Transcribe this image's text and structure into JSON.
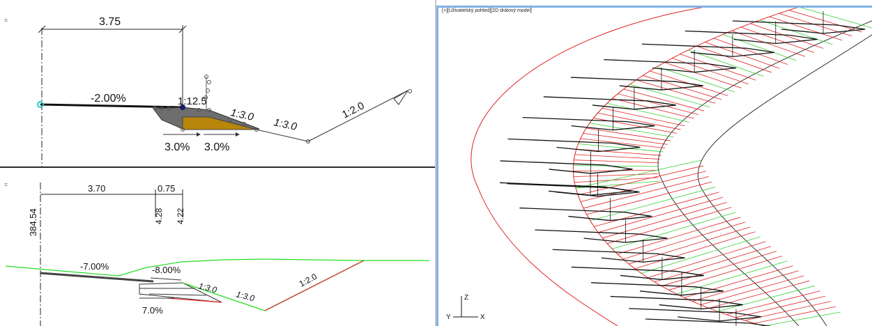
{
  "top_view": {
    "corner_icon": "viewport-icon",
    "dim_width": "3.75",
    "slope_main": "-2.00%",
    "slope_1_12": "1:12.5",
    "slope_1_3a": "1:3.0",
    "slope_1_3b": "1:3.0",
    "slope_1_2": "1:2.0",
    "pct_left": "3.0%",
    "pct_right": "3.0%"
  },
  "bottom_view": {
    "corner_icon": "viewport-icon",
    "dim_width_a": "3.70",
    "dim_width_b": "0.75",
    "elevation": "384.54",
    "height_a": "4.28",
    "height_b": "4.22",
    "slope_main": "-7.00%",
    "slope_second": "-8.00%",
    "slope_1_3a": "1:3.0",
    "slope_1_3b": "1:3.0",
    "slope_1_2": "1:2.0",
    "pct_bottom": "7.0%"
  },
  "right_view": {
    "label": "[+][Uživatelský pohled][2D drátový model]",
    "axis_z": "Z",
    "axis_y": "Y",
    "axis_x": "X"
  },
  "colors": {
    "subgrade": "#b8860b",
    "terrain": "#22dd22",
    "cut_slope": "#b5502a",
    "model_red": "#e02020",
    "model_green": "#30d030",
    "selection": "#2cc6cc"
  }
}
